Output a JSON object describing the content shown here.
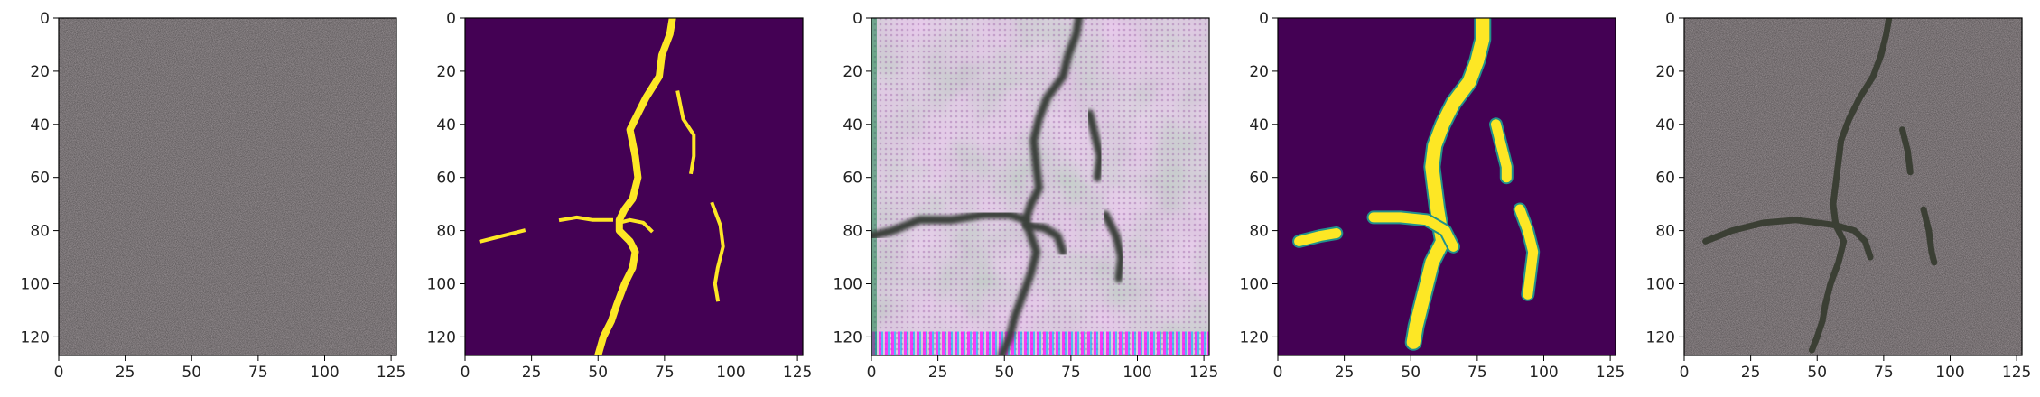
{
  "chart_data": [
    {
      "type": "image",
      "panel": "concrete-photo",
      "xlim": [
        0,
        127
      ],
      "ylim": [
        127,
        0
      ],
      "xticks": [
        0,
        25,
        50,
        75,
        100,
        125
      ],
      "yticks": [
        0,
        20,
        40,
        60,
        80,
        100,
        120
      ],
      "xtick_labels": [
        "0",
        "25",
        "50",
        "75",
        "100",
        "125"
      ],
      "ytick_labels": [
        "0",
        "20",
        "40",
        "60",
        "80",
        "100",
        "120"
      ],
      "grid": false,
      "colors": {
        "background": "#a79fa2"
      }
    },
    {
      "type": "image",
      "panel": "binary-crack-mask",
      "xlim": [
        0,
        127
      ],
      "ylim": [
        127,
        0
      ],
      "xticks": [
        0,
        25,
        50,
        75,
        100,
        125
      ],
      "yticks": [
        0,
        20,
        40,
        60,
        80,
        100,
        120
      ],
      "xtick_labels": [
        "0",
        "25",
        "50",
        "75",
        "100",
        "125"
      ],
      "ytick_labels": [
        "0",
        "20",
        "40",
        "60",
        "80",
        "100",
        "120"
      ],
      "grid": false,
      "colors": {
        "background": "#440154",
        "crack": "#fde725"
      },
      "cracks": [
        [
          [
            78,
            0
          ],
          [
            77,
            6
          ],
          [
            74,
            14
          ],
          [
            73,
            22
          ],
          [
            68,
            30
          ],
          [
            65,
            36
          ],
          [
            62,
            42
          ],
          [
            64,
            52
          ],
          [
            65,
            60
          ],
          [
            63,
            68
          ],
          [
            60,
            72
          ],
          [
            58,
            76
          ],
          [
            58,
            80
          ],
          [
            62,
            84
          ],
          [
            64,
            88
          ],
          [
            63,
            94
          ],
          [
            60,
            100
          ],
          [
            57,
            108
          ],
          [
            55,
            114
          ],
          [
            52,
            120
          ],
          [
            50,
            127
          ]
        ],
        [
          [
            58,
            77
          ],
          [
            62,
            76
          ],
          [
            67,
            77
          ],
          [
            70,
            80
          ]
        ],
        [
          [
            6,
            84
          ],
          [
            14,
            82
          ],
          [
            22,
            80
          ]
        ],
        [
          [
            36,
            76
          ],
          [
            42,
            75
          ],
          [
            48,
            76
          ],
          [
            55,
            76
          ]
        ],
        [
          [
            80,
            28
          ],
          [
            82,
            38
          ],
          [
            86,
            44
          ],
          [
            86,
            52
          ],
          [
            85,
            58
          ]
        ],
        [
          [
            93,
            70
          ],
          [
            96,
            78
          ],
          [
            97,
            86
          ],
          [
            95,
            94
          ],
          [
            94,
            100
          ],
          [
            95,
            106
          ]
        ]
      ]
    },
    {
      "type": "image",
      "panel": "generated-crack-image",
      "xlim": [
        0,
        127
      ],
      "ylim": [
        127,
        0
      ],
      "xticks": [
        0,
        25,
        50,
        75,
        100,
        125
      ],
      "yticks": [
        0,
        20,
        40,
        60,
        80,
        100,
        120
      ],
      "xtick_labels": [
        "0",
        "25",
        "50",
        "75",
        "100",
        "125"
      ],
      "ytick_labels": [
        "0",
        "20",
        "40",
        "60",
        "80",
        "100",
        "120"
      ],
      "grid": false,
      "colors": {
        "background": "#d9c3da",
        "crack": "#3b3f3a"
      },
      "cracks": [
        [
          [
            78,
            0
          ],
          [
            77,
            6
          ],
          [
            74,
            14
          ],
          [
            72,
            22
          ],
          [
            66,
            30
          ],
          [
            63,
            38
          ],
          [
            61,
            46
          ],
          [
            62,
            56
          ],
          [
            63,
            64
          ],
          [
            60,
            70
          ],
          [
            58,
            76
          ],
          [
            60,
            82
          ],
          [
            62,
            88
          ],
          [
            60,
            96
          ],
          [
            57,
            104
          ],
          [
            54,
            112
          ],
          [
            52,
            120
          ],
          [
            49,
            127
          ]
        ],
        [
          [
            0,
            82
          ],
          [
            8,
            80
          ],
          [
            18,
            76
          ],
          [
            30,
            76
          ],
          [
            42,
            74
          ],
          [
            52,
            74
          ],
          [
            58,
            76
          ]
        ],
        [
          [
            58,
            78
          ],
          [
            65,
            79
          ],
          [
            70,
            82
          ],
          [
            72,
            88
          ]
        ],
        [
          [
            82,
            36
          ],
          [
            84,
            44
          ],
          [
            86,
            52
          ],
          [
            85,
            60
          ]
        ],
        [
          [
            88,
            74
          ],
          [
            92,
            82
          ],
          [
            94,
            90
          ],
          [
            93,
            98
          ]
        ]
      ]
    },
    {
      "type": "image",
      "panel": "predicted-crack-probability",
      "xlim": [
        0,
        127
      ],
      "ylim": [
        127,
        0
      ],
      "xticks": [
        0,
        25,
        50,
        75,
        100,
        125
      ],
      "yticks": [
        0,
        20,
        40,
        60,
        80,
        100,
        120
      ],
      "xtick_labels": [
        "0",
        "25",
        "50",
        "75",
        "100",
        "125"
      ],
      "ytick_labels": [
        "0",
        "20",
        "40",
        "60",
        "80",
        "100",
        "120"
      ],
      "grid": false,
      "colors": {
        "background": "#440154",
        "crack": "#fde725",
        "crack_edge": "#21918c"
      },
      "cracks": [
        [
          [
            77,
            0
          ],
          [
            77,
            8
          ],
          [
            75,
            16
          ],
          [
            72,
            24
          ],
          [
            66,
            32
          ],
          [
            62,
            40
          ],
          [
            59,
            48
          ],
          [
            58,
            56
          ],
          [
            59,
            64
          ],
          [
            60,
            72
          ],
          [
            61,
            78
          ],
          [
            62,
            84
          ],
          [
            58,
            92
          ],
          [
            56,
            100
          ],
          [
            54,
            108
          ],
          [
            52,
            116
          ],
          [
            51,
            122
          ]
        ],
        [
          [
            36,
            75
          ],
          [
            46,
            75
          ],
          [
            56,
            76
          ],
          [
            63,
            80
          ],
          [
            66,
            86
          ]
        ],
        [
          [
            8,
            84
          ],
          [
            16,
            82
          ],
          [
            22,
            81
          ]
        ],
        [
          [
            82,
            40
          ],
          [
            84,
            48
          ],
          [
            86,
            56
          ],
          [
            86,
            60
          ]
        ],
        [
          [
            91,
            72
          ],
          [
            94,
            80
          ],
          [
            96,
            88
          ],
          [
            95,
            96
          ],
          [
            94,
            104
          ]
        ]
      ]
    },
    {
      "type": "image",
      "panel": "crack-overlay-photo",
      "xlim": [
        0,
        127
      ],
      "ylim": [
        127,
        0
      ],
      "xticks": [
        0,
        25,
        50,
        75,
        100,
        125
      ],
      "yticks": [
        0,
        20,
        40,
        60,
        80,
        100,
        120
      ],
      "xtick_labels": [
        "0",
        "25",
        "50",
        "75",
        "100",
        "125"
      ],
      "ytick_labels": [
        "0",
        "20",
        "40",
        "60",
        "80",
        "100",
        "120"
      ],
      "grid": false,
      "colors": {
        "background": "#a59c9f",
        "crack": "#3b3f34"
      },
      "cracks": [
        [
          [
            77,
            0
          ],
          [
            76,
            6
          ],
          [
            74,
            14
          ],
          [
            71,
            22
          ],
          [
            66,
            30
          ],
          [
            62,
            38
          ],
          [
            59,
            46
          ],
          [
            58,
            54
          ],
          [
            57,
            62
          ],
          [
            56,
            70
          ],
          [
            57,
            78
          ],
          [
            60,
            84
          ],
          [
            58,
            92
          ],
          [
            55,
            100
          ],
          [
            53,
            108
          ],
          [
            52,
            114
          ],
          [
            50,
            120
          ],
          [
            48,
            125
          ]
        ],
        [
          [
            8,
            84
          ],
          [
            18,
            80
          ],
          [
            30,
            77
          ],
          [
            42,
            76
          ],
          [
            50,
            77
          ],
          [
            57,
            78
          ]
        ],
        [
          [
            57,
            78
          ],
          [
            64,
            80
          ],
          [
            68,
            84
          ],
          [
            70,
            90
          ]
        ],
        [
          [
            82,
            42
          ],
          [
            84,
            50
          ],
          [
            85,
            58
          ]
        ],
        [
          [
            90,
            72
          ],
          [
            92,
            80
          ],
          [
            93,
            88
          ],
          [
            94,
            92
          ]
        ]
      ]
    }
  ]
}
